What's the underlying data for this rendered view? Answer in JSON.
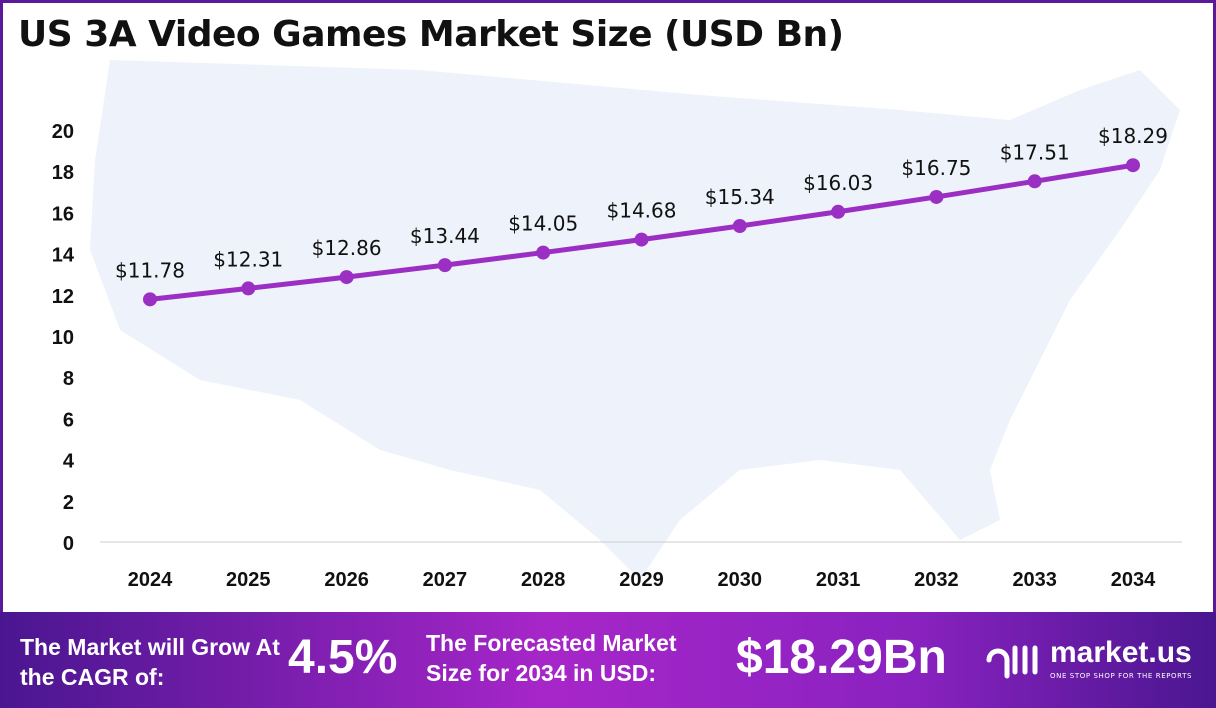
{
  "chart_data": {
    "type": "line",
    "title": "US 3A Video Games Market Size (USD Bn)",
    "categories": [
      "2024",
      "2025",
      "2026",
      "2027",
      "2028",
      "2029",
      "2030",
      "2031",
      "2032",
      "2033",
      "2034"
    ],
    "values": [
      11.78,
      12.31,
      12.86,
      13.44,
      14.05,
      14.68,
      15.34,
      16.03,
      16.75,
      17.51,
      18.29
    ],
    "data_labels": [
      "$11.78",
      "$12.31",
      "$12.86",
      "$13.44",
      "$14.05",
      "$14.68",
      "$15.34",
      "$16.03",
      "$16.75",
      "$17.51",
      "$18.29"
    ],
    "yticks": [
      0,
      2,
      4,
      6,
      8,
      10,
      12,
      14,
      16,
      18,
      20
    ],
    "ylim": [
      0,
      20
    ],
    "xlabel": "",
    "ylabel": "",
    "grid": false,
    "line_color": "#9b2fc4"
  },
  "footer": {
    "cagr_label": "The Market will Grow At the CAGR of:",
    "cagr_value": "4.5%",
    "forecast_label": "The Forecasted Market Size for 2034 in USD:",
    "forecast_value": "$18.29Bn",
    "logo_text": "market.us",
    "logo_tagline": "ONE STOP SHOP FOR THE REPORTS"
  }
}
